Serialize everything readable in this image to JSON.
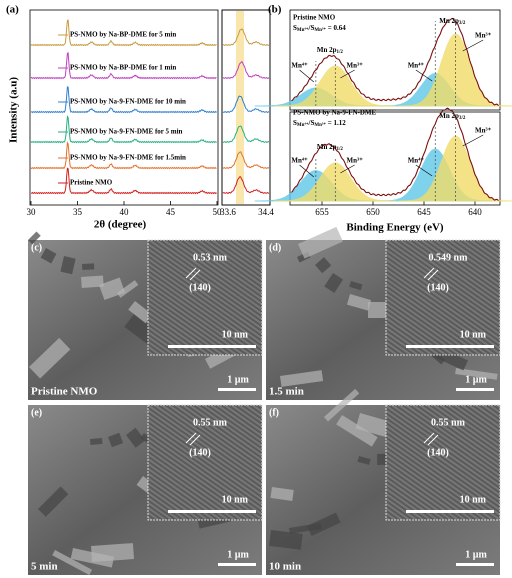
{
  "panel_a": {
    "label": "(a)",
    "y_label": "Intensity (a.u)",
    "x_label": "2θ (degree)",
    "xticks_left": [
      "30",
      "35",
      "40",
      "45",
      "50"
    ],
    "xticks_right": [
      "33.6",
      "34.4"
    ],
    "series": [
      {
        "name": "PS-NMO by Na-BP-DME for 5 min",
        "color": "#c89a40"
      },
      {
        "name": "PS-NMO by Na-BP-DME for 1 min",
        "color": "#c040c0"
      },
      {
        "name": "PS-NMO by Na-9-FN-DME for 10 min",
        "color": "#2f7fd0"
      },
      {
        "name": "PS-NMO by Na-9-FN-DME for 5 min",
        "color": "#25b080"
      },
      {
        "name": "PS-NMO by Na-9-FN-DME for 1.5min",
        "color": "#e2702a"
      },
      {
        "name": "Pristine NMO",
        "color": "#d01e1e"
      }
    ]
  },
  "panel_b": {
    "label": "(b)",
    "x_label": "Binding Energy (eV)",
    "xticks": [
      "655",
      "650",
      "645",
      "640"
    ],
    "spectra": [
      {
        "sample": "Pristine NMO",
        "ratio": [
          "S",
          "Mn⁴⁺",
          "/S",
          "Mn³⁺",
          " = 0.64"
        ],
        "peak_32": [
          "Mn 2p",
          "3/2"
        ],
        "peak_12": [
          "Mn 2p",
          "1/2"
        ],
        "mn4": "Mn⁴⁺",
        "mn3": "Mn³⁺"
      },
      {
        "sample": "PS-NMO by Na-9-FN-DME",
        "ratio": [
          "S",
          "Mn⁴⁺",
          "/S",
          "Mn³⁺",
          " = 1.12"
        ],
        "peak_32": [
          "Mn 2p",
          "3/2"
        ],
        "peak_12": [
          "Mn 2p",
          "1/2"
        ],
        "mn4": "Mn⁴⁺",
        "mn3": "Mn³⁺"
      }
    ]
  },
  "images": [
    {
      "label": "(c)",
      "d_spacing": "0.53 nm",
      "plane": "(140)",
      "inset_scale": "10 nm",
      "scale": "1 µm",
      "caption": "Pristine NMO"
    },
    {
      "label": "(d)",
      "d_spacing": "0.549 nm",
      "plane": "(140)",
      "inset_scale": "10 nm",
      "scale": "1 µm",
      "caption": "1.5 min"
    },
    {
      "label": "(e)",
      "d_spacing": "0.55 nm",
      "plane": "(140)",
      "inset_scale": "10 nm",
      "scale": "1 µm",
      "caption": "5 min"
    },
    {
      "label": "(f)",
      "d_spacing": "0.55 nm",
      "plane": "(140)",
      "inset_scale": "10 nm",
      "scale": "1 µm",
      "caption": "10 min"
    }
  ]
}
